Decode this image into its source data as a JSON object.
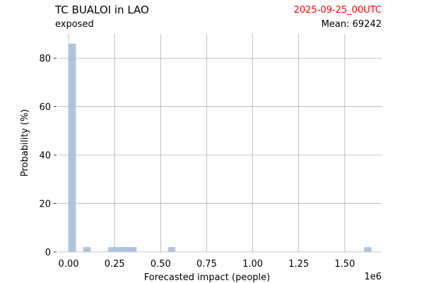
{
  "header": {
    "title": "TC BUALOI in LAO",
    "subtitle": "exposed",
    "date": "2025-09-25_00UTC",
    "mean_label": "Mean: 69242"
  },
  "colors": {
    "bar": "#b0c4de",
    "grid": "#b0b0b0",
    "date": "#ff0000",
    "text": "#000000"
  },
  "chart_data": {
    "type": "bar",
    "title": "TC BUALOI in LAO",
    "subtitle": "exposed",
    "xlabel": "Forecasted impact (people)",
    "ylabel": "Probability (%)",
    "x_scale_note": "1e6",
    "xlim": [
      -0.05,
      1.7
    ],
    "ylim": [
      0,
      90
    ],
    "xticks": [
      0.0,
      0.25,
      0.5,
      0.75,
      1.0,
      1.25,
      1.5
    ],
    "xtick_labels": [
      "0.00",
      "0.25",
      "0.50",
      "0.75",
      "1.00",
      "1.25",
      "1.50"
    ],
    "yticks": [
      0,
      20,
      40,
      60,
      80
    ],
    "ytick_labels": [
      "0",
      "20",
      "40",
      "60",
      "80"
    ],
    "bin_width": 0.04,
    "bins": [
      {
        "x": 0.02,
        "value": 86
      },
      {
        "x": 0.1,
        "value": 2
      },
      {
        "x": 0.235,
        "value": 2
      },
      {
        "x": 0.27,
        "value": 2
      },
      {
        "x": 0.31,
        "value": 2
      },
      {
        "x": 0.35,
        "value": 2
      },
      {
        "x": 0.56,
        "value": 2
      },
      {
        "x": 1.625,
        "value": 2
      }
    ],
    "grid": true
  }
}
